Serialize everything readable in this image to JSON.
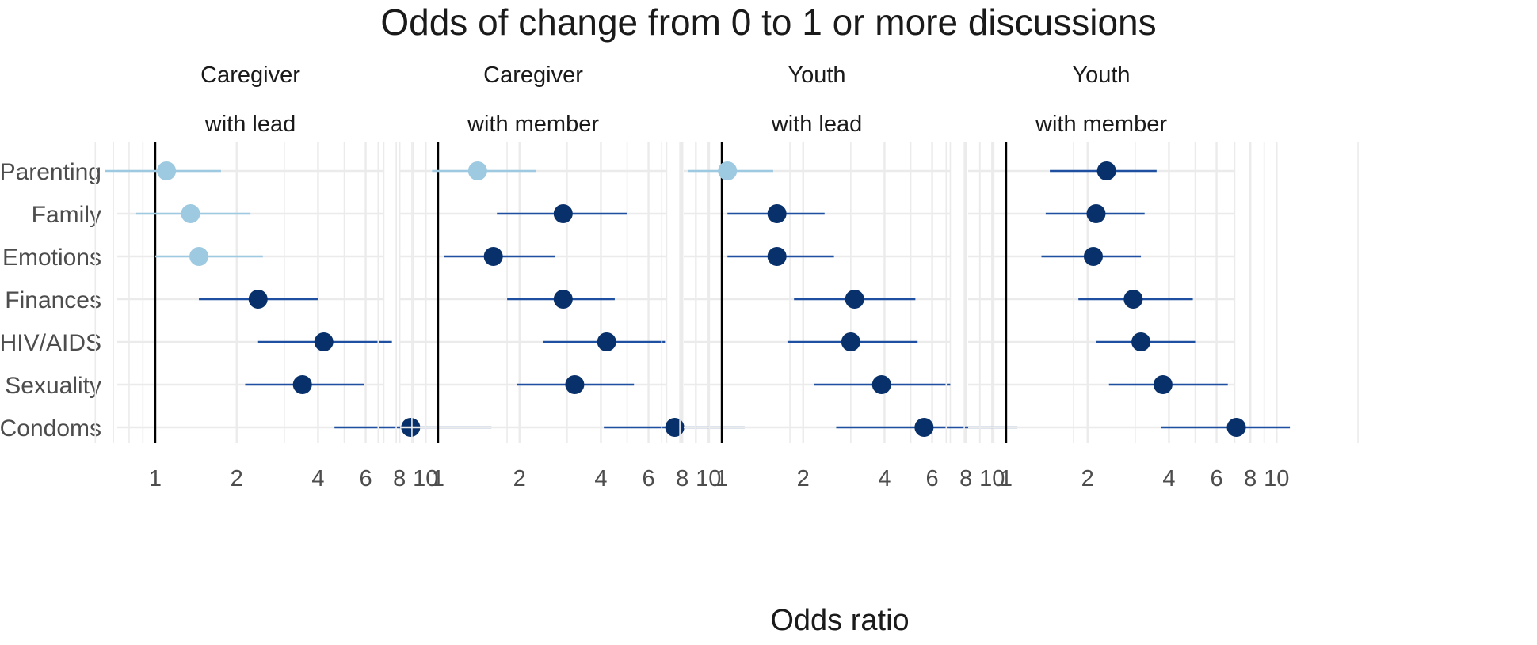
{
  "chart_data": {
    "type": "forest",
    "title": "Odds of change from 0 to 1 or more discussions",
    "xlabel": "Odds ratio",
    "ylabel": "",
    "x_scale": "log",
    "xlim": [
      0.55,
      20
    ],
    "x_ticks": [
      1,
      2,
      4,
      6,
      8,
      10
    ],
    "x_tick_labels": [
      "1",
      "2",
      "4",
      "6",
      "8",
      "10"
    ],
    "reference_line": 1,
    "grid": true,
    "categories": [
      "Parenting",
      "Family",
      "Emotions",
      "Finances",
      "HIV/AIDS",
      "Sexuality",
      "Condoms"
    ],
    "colors": {
      "significant": "#08306b",
      "significant_line": "#1f4fa0",
      "not_significant": "#9ecae1",
      "grid": "#ebebeb",
      "reference": "#000000"
    },
    "panels": [
      {
        "strip": [
          "Caregiver",
          "with lead"
        ],
        "estimates": [
          1.1,
          1.35,
          1.45,
          2.4,
          4.2,
          3.5,
          8.8
        ],
        "lower": [
          0.65,
          0.85,
          1.0,
          1.45,
          2.4,
          2.15,
          4.6
        ],
        "upper": [
          1.75,
          2.25,
          2.5,
          4.0,
          7.5,
          5.9,
          17.5
        ],
        "significant": [
          false,
          false,
          false,
          true,
          true,
          true,
          true
        ]
      },
      {
        "strip": [
          "Caregiver",
          "with member"
        ],
        "estimates": [
          1.4,
          2.9,
          1.6,
          2.9,
          4.2,
          3.2,
          7.5
        ],
        "lower": [
          0.95,
          1.65,
          1.05,
          1.8,
          2.45,
          1.95,
          4.1
        ],
        "upper": [
          2.3,
          5.0,
          2.7,
          4.5,
          6.9,
          5.3,
          13.6
        ],
        "significant": [
          false,
          true,
          true,
          true,
          true,
          true,
          true
        ]
      },
      {
        "strip": [
          "Youth",
          "with lead"
        ],
        "estimates": [
          1.05,
          1.6,
          1.6,
          3.1,
          3.0,
          3.9,
          5.6
        ],
        "lower": [
          0.75,
          1.05,
          1.05,
          1.85,
          1.75,
          2.2,
          2.65
        ],
        "upper": [
          1.55,
          2.4,
          2.6,
          5.2,
          5.3,
          7.0,
          12.4
        ],
        "significant": [
          false,
          true,
          true,
          true,
          true,
          true,
          true
        ]
      },
      {
        "strip": [
          "Youth",
          "with member"
        ],
        "estimates": [
          2.35,
          2.15,
          2.1,
          2.95,
          3.15,
          3.8,
          7.1
        ],
        "lower": [
          1.45,
          1.4,
          1.35,
          1.85,
          2.15,
          2.4,
          3.75
        ],
        "upper": [
          3.6,
          3.25,
          3.15,
          4.9,
          5.0,
          6.6,
          11.2
        ],
        "significant": [
          true,
          true,
          true,
          true,
          true,
          true,
          true
        ]
      }
    ]
  }
}
